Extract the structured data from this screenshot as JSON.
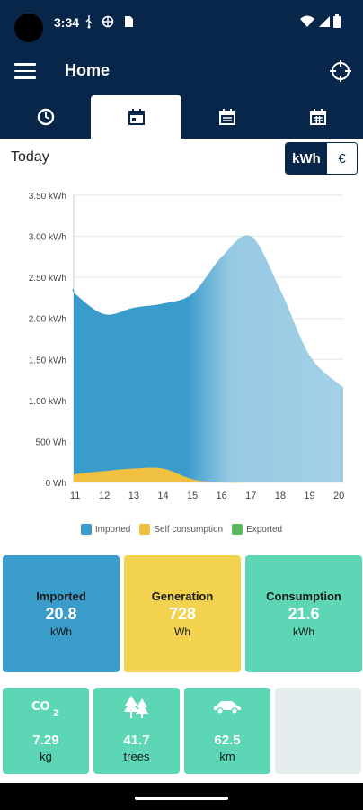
{
  "status_bar": {
    "time": "3:34"
  },
  "app_bar": {
    "title": "Home"
  },
  "tabs": [
    {
      "name": "clock-icon",
      "active": false
    },
    {
      "name": "calendar-day-icon",
      "active": true
    },
    {
      "name": "calendar-month-icon",
      "active": false
    },
    {
      "name": "calendar-year-icon",
      "active": false
    }
  ],
  "period": {
    "label": "Today"
  },
  "unit_toggle": {
    "kwh": "kWh",
    "euro": "€",
    "selected": "kWh"
  },
  "chart_data": {
    "type": "area",
    "title": "",
    "x": [
      10.95,
      11,
      12,
      13,
      14,
      15,
      16,
      17,
      18,
      19,
      20,
      20.15
    ],
    "x_ticks": [
      "11",
      "12",
      "13",
      "14",
      "15",
      "16",
      "17",
      "18",
      "19",
      "20"
    ],
    "y_ticks": [
      "0 Wh",
      "500 Wh",
      "1.00 kWh",
      "1.50 kWh",
      "2.00 kWh",
      "2.50 kWh",
      "3.00 kWh",
      "3.50 kWh"
    ],
    "ylim": [
      0,
      3.5
    ],
    "y_unit": "kWh",
    "grid": true,
    "legend_position": "bottom",
    "series": [
      {
        "name": "Imported",
        "color": "#3a9ccb",
        "values": [
          2.37,
          2.3,
          2.05,
          2.13,
          2.18,
          2.3,
          2.75,
          3.0,
          2.35,
          1.55,
          1.2,
          1.18
        ]
      },
      {
        "name": "Self consumption",
        "color": "#f0c040",
        "values": [
          0.08,
          0.1,
          0.14,
          0.17,
          0.17,
          0.04,
          0.0,
          0.0,
          0.0,
          0.0,
          0.0,
          0.0
        ]
      },
      {
        "name": "Exported",
        "color": "#5cb85c",
        "values": [
          0,
          0,
          0,
          0,
          0,
          0,
          0,
          0,
          0,
          0,
          0,
          0
        ]
      }
    ]
  },
  "summary": {
    "imported": {
      "title": "Imported",
      "value": "20.8",
      "unit": "kWh",
      "color": "#3a9ccb"
    },
    "generation": {
      "title": "Generation",
      "value": "728",
      "unit": "Wh",
      "color": "#f2d24f"
    },
    "consumption": {
      "title": "Consumption",
      "value": "21.6",
      "unit": "kWh",
      "color": "#5dd6b6"
    }
  },
  "impact": {
    "co2": {
      "value": "7.29",
      "unit": "kg",
      "icon": "co2-icon"
    },
    "trees": {
      "value": "41.7",
      "unit": "trees",
      "icon": "trees-icon"
    },
    "car": {
      "value": "62.5",
      "unit": "km",
      "icon": "car-icon"
    }
  }
}
